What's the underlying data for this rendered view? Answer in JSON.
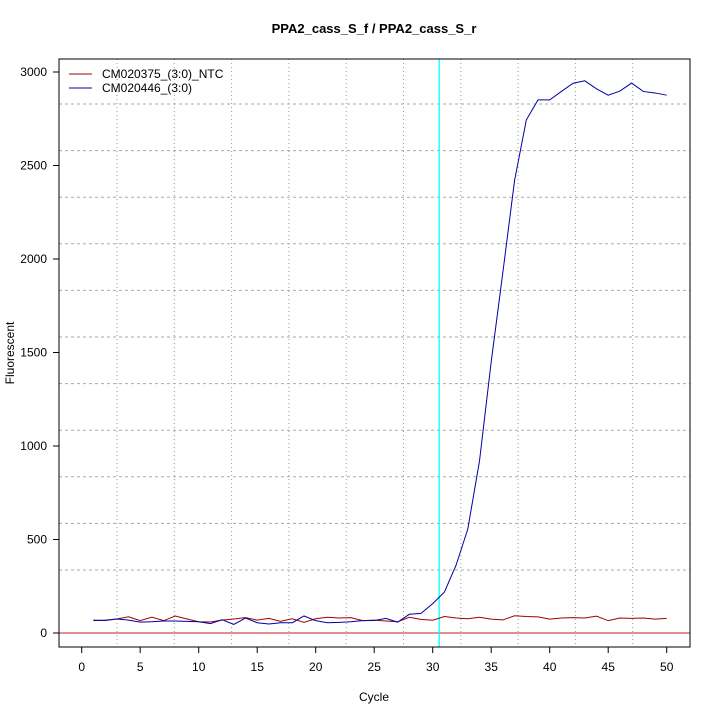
{
  "chart_data": {
    "type": "line",
    "title": "PPA2_cass_S_f / PPA2_cass_S_r",
    "xlabel": "Cycle",
    "ylabel": "Fluorescent",
    "xlim": [
      -2,
      52
    ],
    "ylim": [
      -70,
      3080
    ],
    "x_ticks": [
      0,
      5,
      10,
      15,
      20,
      25,
      30,
      35,
      40,
      45,
      50
    ],
    "y_ticks": [
      0,
      500,
      1000,
      1500,
      2000,
      2500,
      3000
    ],
    "grid": true,
    "legend_position": "top-left",
    "threshold_cycle": 30.55,
    "baseline_value": 0,
    "colors": {
      "threshold": "#00FFFF",
      "baseline": "#C85050"
    },
    "x": [
      1,
      2,
      3,
      4,
      5,
      6,
      7,
      8,
      9,
      10,
      11,
      12,
      13,
      14,
      15,
      16,
      17,
      18,
      19,
      20,
      21,
      22,
      23,
      24,
      25,
      26,
      27,
      28,
      29,
      30,
      31,
      32,
      33,
      34,
      35,
      36,
      37,
      38,
      39,
      40,
      41,
      42,
      43,
      44,
      45,
      46,
      47,
      48,
      49,
      50
    ],
    "series": [
      {
        "name": "CM020375_(3:0)_NTC",
        "color": "#A00000",
        "values": [
          66,
          69,
          75,
          87,
          66,
          85,
          66,
          91,
          75,
          60,
          59,
          69,
          75,
          82,
          69,
          78,
          62,
          76,
          57,
          76,
          84,
          80,
          82,
          66,
          69,
          64,
          60,
          84,
          73,
          68,
          88,
          80,
          76,
          84,
          74,
          70,
          92,
          88,
          86,
          74,
          80,
          82,
          80,
          90,
          66,
          80,
          78,
          80,
          74,
          78
        ]
      },
      {
        "name": "CM020446_(3:0)",
        "color": "#0000A0",
        "values": [
          69,
          67,
          75,
          69,
          58,
          60,
          64,
          64,
          62,
          60,
          50,
          71,
          46,
          80,
          55,
          48,
          55,
          55,
          91,
          66,
          55,
          57,
          60,
          66,
          67,
          78,
          58,
          100,
          105,
          157,
          219,
          363,
          556,
          920,
          1450,
          1930,
          2421,
          2743,
          2851,
          2851,
          2896,
          2940,
          2953,
          2910,
          2876,
          2898,
          2941,
          2896,
          2888,
          2876
        ]
      }
    ]
  }
}
